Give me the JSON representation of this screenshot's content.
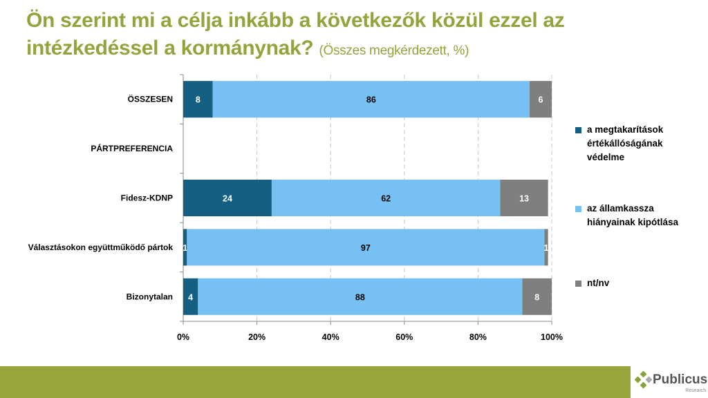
{
  "title": {
    "main": "Ön szerint mi a célja inkább a következők közül ezzel az intézkedéssel a kormánynak?",
    "sub": "(Összes megkérdezett, %)"
  },
  "chart_data": {
    "type": "bar",
    "orientation": "horizontal-stacked-100",
    "categories": [
      "ÖSSZESEN",
      "PÁRTPREFERENCIA",
      "Fidesz-KDNP",
      "Választásokon együttműködő pártok",
      "Bizonytalan"
    ],
    "series": [
      {
        "name": "a megtakarítások értékállóságának védelme",
        "color": "#155f82",
        "values": [
          8,
          null,
          24,
          1,
          4
        ]
      },
      {
        "name": "az államkassza hiányainak kipótlása",
        "color": "#77c0f4",
        "values": [
          86,
          null,
          62,
          97,
          88
        ]
      },
      {
        "name": "nt/nv",
        "color": "#7f7f7f",
        "values": [
          6,
          null,
          13,
          1,
          8
        ]
      }
    ],
    "xlim": [
      0,
      100
    ],
    "xticks": [
      "0%",
      "20%",
      "40%",
      "60%",
      "80%",
      "100%"
    ],
    "grid": "vertical-dashed",
    "legend": "right"
  },
  "footer": {
    "logo_name": "Publicus",
    "logo_sub": "Research"
  }
}
